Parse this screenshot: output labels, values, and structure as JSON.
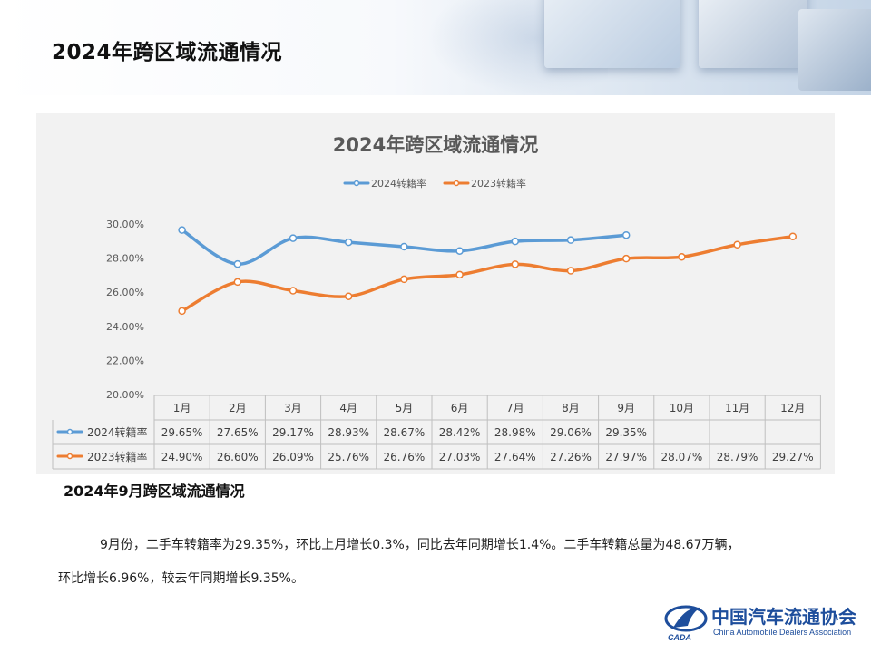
{
  "page": {
    "title": "2024年跨区域流通情况"
  },
  "chart_data": {
    "type": "line",
    "title": "2024年跨区域流通情况",
    "categories": [
      "1月",
      "2月",
      "3月",
      "4月",
      "5月",
      "6月",
      "7月",
      "8月",
      "9月",
      "10月",
      "11月",
      "12月"
    ],
    "series": [
      {
        "name": "2024转籍率",
        "color": "#5b9bd5",
        "values": [
          29.65,
          27.65,
          29.17,
          28.93,
          28.67,
          28.42,
          28.98,
          29.06,
          29.35,
          null,
          null,
          null
        ],
        "labels": [
          "29.65%",
          "27.65%",
          "29.17%",
          "28.93%",
          "28.67%",
          "28.42%",
          "28.98%",
          "29.06%",
          "29.35%",
          "",
          "",
          ""
        ]
      },
      {
        "name": "2023转籍率",
        "color": "#ed7d31",
        "values": [
          24.9,
          26.6,
          26.09,
          25.76,
          26.76,
          27.03,
          27.64,
          27.26,
          27.97,
          28.07,
          28.79,
          29.27
        ],
        "labels": [
          "24.90%",
          "26.60%",
          "26.09%",
          "25.76%",
          "26.76%",
          "27.03%",
          "27.64%",
          "27.26%",
          "27.97%",
          "28.07%",
          "28.79%",
          "29.27%"
        ]
      }
    ],
    "ylim": [
      20,
      30
    ],
    "yticks": [
      "20.00%",
      "22.00%",
      "24.00%",
      "26.00%",
      "28.00%",
      "30.00%"
    ],
    "legend": "top",
    "data_table": true
  },
  "section": {
    "title": "2024年9月跨区域流通情况",
    "line1": "9月份，二手车转籍率为29.35%，环比上月增长0.3%，同比去年同期增长1.4%。二手车转籍总量为48.67万辆，",
    "line2": "环比增长6.96%，较去年同期增长9.35%。"
  },
  "logo": {
    "title": "中国汽车流通协会",
    "subtitle": "China Automobile Dealers Association",
    "mark_text": "CADA"
  }
}
